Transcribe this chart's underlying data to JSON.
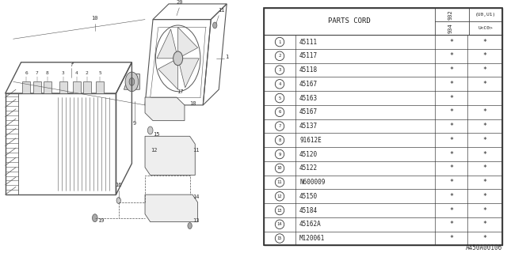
{
  "bg_color": "#ffffff",
  "parts_cord_header": "PARTS CORD",
  "col_header_rotated": "932",
  "col_header_top": "(U0,U1)",
  "col_header_rotated2": "934",
  "col_header_bot": "U<C0>",
  "footer": "A450A00106",
  "rows": [
    {
      "num": "1",
      "part": "45111",
      "c1": "*",
      "c2": "*"
    },
    {
      "num": "2",
      "part": "45117",
      "c1": "*",
      "c2": "*"
    },
    {
      "num": "3",
      "part": "45118",
      "c1": "*",
      "c2": "*"
    },
    {
      "num": "4",
      "part": "45167",
      "c1": "*",
      "c2": "*"
    },
    {
      "num": "5",
      "part": "45163",
      "c1": "*",
      "c2": ""
    },
    {
      "num": "6",
      "part": "45167",
      "c1": "*",
      "c2": "*"
    },
    {
      "num": "7",
      "part": "45137",
      "c1": "*",
      "c2": "*"
    },
    {
      "num": "8",
      "part": "91612E",
      "c1": "*",
      "c2": "*"
    },
    {
      "num": "9",
      "part": "45120",
      "c1": "*",
      "c2": "*"
    },
    {
      "num": "10",
      "part": "45122",
      "c1": "*",
      "c2": "*"
    },
    {
      "num": "11",
      "part": "N600009",
      "c1": "*",
      "c2": "*"
    },
    {
      "num": "12",
      "part": "45150",
      "c1": "*",
      "c2": "*"
    },
    {
      "num": "13",
      "part": "45184",
      "c1": "*",
      "c2": "*"
    },
    {
      "num": "14",
      "part": "45162A",
      "c1": "*",
      "c2": "*"
    },
    {
      "num": "15",
      "part": "M120061",
      "c1": "*",
      "c2": "*"
    }
  ],
  "line_color": "#555555",
  "text_color": "#333333"
}
